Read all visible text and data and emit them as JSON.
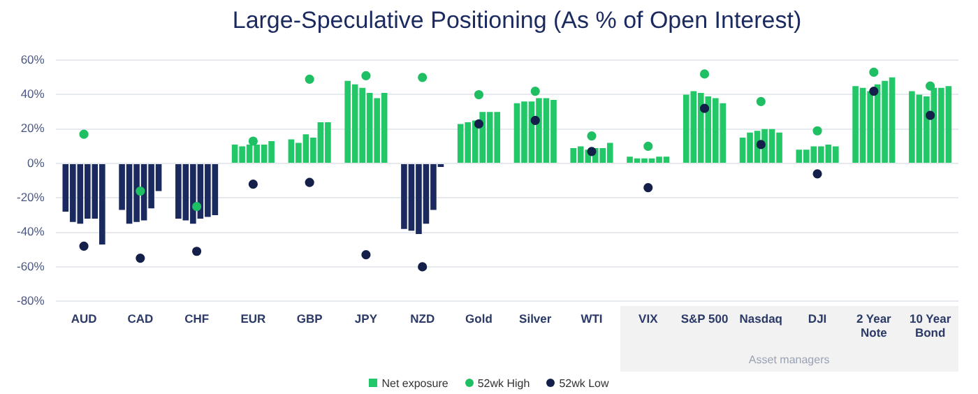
{
  "chart_data": {
    "type": "bar",
    "title": "Large-Speculative Positioning (As % of Open Interest)",
    "categories": [
      "AUD",
      "CAD",
      "CHF",
      "EUR",
      "GBP",
      "JPY",
      "NZD",
      "Gold",
      "Silver",
      "WTI",
      "VIX",
      "S&P 500",
      "Nasdaq",
      "DJI",
      "2 Year Note",
      "10 Year Bond"
    ],
    "series": [
      {
        "name": "Net exposure",
        "color": "#22c768",
        "colors": [
          "#1b2a5e",
          "#1b2a5e",
          "#1b2a5e",
          "#22c768",
          "#22c768",
          "#22c768",
          "#1b2a5e",
          "#22c768",
          "#22c768",
          "#22c768",
          "#22c768",
          "#22c768",
          "#22c768",
          "#22c768",
          "#22c768",
          "#22c768"
        ],
        "values": [
          -28,
          -27,
          -32,
          11,
          14,
          48,
          -38,
          23,
          35,
          9,
          4,
          40,
          15,
          8,
          45,
          42
        ]
      },
      {
        "colors": [
          "#1b2a5e",
          "#1b2a5e",
          "#1b2a5e",
          "#22c768",
          "#22c768",
          "#22c768",
          "#1b2a5e",
          "#22c768",
          "#22c768",
          "#22c768",
          "#22c768",
          "#22c768",
          "#22c768",
          "#22c768",
          "#22c768",
          "#22c768"
        ],
        "values": [
          -34,
          -35,
          -33,
          10,
          12,
          46,
          -39,
          24,
          36,
          10,
          3,
          42,
          18,
          8,
          44,
          40
        ]
      },
      {
        "colors": [
          "#1b2a5e",
          "#1b2a5e",
          "#1b2a5e",
          "#22c768",
          "#22c768",
          "#22c768",
          "#1b2a5e",
          "#22c768",
          "#22c768",
          "#22c768",
          "#22c768",
          "#22c768",
          "#22c768",
          "#22c768",
          "#22c768",
          "#22c768"
        ],
        "values": [
          -35,
          -34,
          -35,
          11,
          17,
          44,
          -41,
          25,
          36,
          8,
          3,
          41,
          19,
          10,
          42,
          39
        ]
      },
      {
        "colors": [
          "#1b2a5e",
          "#1b2a5e",
          "#1b2a5e",
          "#22c768",
          "#22c768",
          "#22c768",
          "#1b2a5e",
          "#22c768",
          "#22c768",
          "#22c768",
          "#22c768",
          "#22c768",
          "#22c768",
          "#22c768",
          "#22c768",
          "#22c768"
        ],
        "values": [
          -32,
          -33,
          -32,
          11,
          15,
          41,
          -35,
          30,
          38,
          9,
          3,
          39,
          20,
          10,
          46,
          44
        ]
      },
      {
        "colors": [
          "#1b2a5e",
          "#1b2a5e",
          "#1b2a5e",
          "#22c768",
          "#22c768",
          "#22c768",
          "#1b2a5e",
          "#22c768",
          "#22c768",
          "#22c768",
          "#22c768",
          "#22c768",
          "#22c768",
          "#22c768",
          "#22c768",
          "#22c768"
        ],
        "values": [
          -32,
          -26,
          -31,
          11,
          24,
          38,
          -27,
          30,
          38,
          9,
          4,
          38,
          20,
          11,
          48,
          44
        ]
      },
      {
        "colors": [
          "#1b2a5e",
          "#1b2a5e",
          "#1b2a5e",
          "#22c768",
          "#22c768",
          "#22c768",
          "#1b2a5e",
          "#22c768",
          "#22c768",
          "#22c768",
          "#22c768",
          "#22c768",
          "#22c768",
          "#22c768",
          "#22c768",
          "#22c768"
        ],
        "values": [
          -47,
          -16,
          -30,
          13,
          24,
          41,
          -2,
          30,
          37,
          12,
          4,
          35,
          18,
          10,
          50,
          45
        ]
      },
      {
        "name": "52wk High",
        "type": "scatter",
        "color": "#1fbf63",
        "x": [
          "AUD",
          "CAD",
          "CHF",
          "EUR",
          "GBP",
          "JPY",
          "NZD",
          "Gold",
          "Silver",
          "WTI",
          "VIX",
          "S&P 500",
          "Nasdaq",
          "DJI",
          "2 Year Note",
          "10 Year Bond"
        ],
        "values": [
          17,
          -16,
          -25,
          13,
          49,
          51,
          50,
          40,
          42,
          16,
          10,
          52,
          36,
          19,
          53,
          45
        ]
      },
      {
        "name": "52wk Low",
        "type": "scatter",
        "color": "#14204a",
        "x": [
          "AUD",
          "CAD",
          "CHF",
          "EUR",
          "GBP",
          "JPY",
          "NZD",
          "Gold",
          "Silver",
          "WTI",
          "VIX",
          "S&P 500",
          "Nasdaq",
          "DJI",
          "2 Year Note",
          "10 Year Bond"
        ],
        "values": [
          -48,
          -55,
          -51,
          -12,
          -11,
          -53,
          -60,
          23,
          25,
          7,
          -14,
          32,
          11,
          -6,
          42,
          28
        ]
      }
    ],
    "ylim": [
      -80,
      60
    ],
    "yticks": [
      {
        "value": -80,
        "label": "-80%"
      },
      {
        "value": -60,
        "label": "-60%"
      },
      {
        "value": -40,
        "label": "-40%"
      },
      {
        "value": -20,
        "label": "-20%"
      },
      {
        "value": 0,
        "label": "0%"
      },
      {
        "value": 20,
        "label": "20%"
      },
      {
        "value": 40,
        "label": "40%"
      },
      {
        "value": 60,
        "label": "60%"
      }
    ],
    "grid": "y",
    "legend": "bottom",
    "marker": "circle",
    "annotations": [
      "Asset managers"
    ]
  }
}
